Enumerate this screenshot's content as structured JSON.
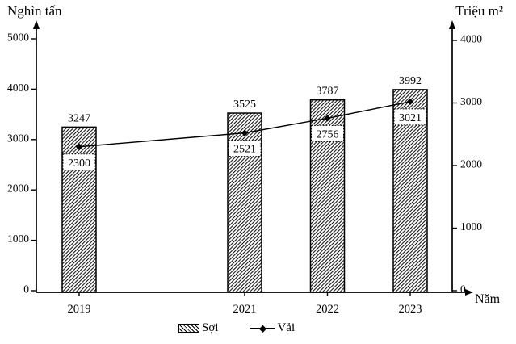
{
  "chart_data": {
    "type": "bar",
    "subtype": "combo-bar-line-dual-axis",
    "categories": [
      "2019",
      "2021",
      "2022",
      "2023"
    ],
    "series": [
      {
        "name": "Sợi",
        "kind": "bar",
        "axis": "left",
        "values": [
          3247,
          3525,
          3787,
          3992
        ]
      },
      {
        "name": "Vải",
        "kind": "line",
        "axis": "right",
        "values": [
          2300,
          2521,
          2756,
          3021
        ]
      }
    ],
    "left_axis": {
      "label": "Nghìn tấn",
      "min": 0,
      "max": 5000,
      "step": 1000,
      "ticks": [
        "0",
        "1000",
        "2000",
        "3000",
        "4000",
        "5000"
      ]
    },
    "right_axis": {
      "label": "Triệu m²",
      "min": 0,
      "max": 4000,
      "step": 1000,
      "ticks": [
        "0",
        "1000",
        "2000",
        "3000",
        "4000"
      ]
    },
    "x_axis": {
      "label": "Năm"
    },
    "legend_position": "bottom",
    "grid": false,
    "colors": {
      "ink": "#000000",
      "background": "#ffffff"
    }
  }
}
